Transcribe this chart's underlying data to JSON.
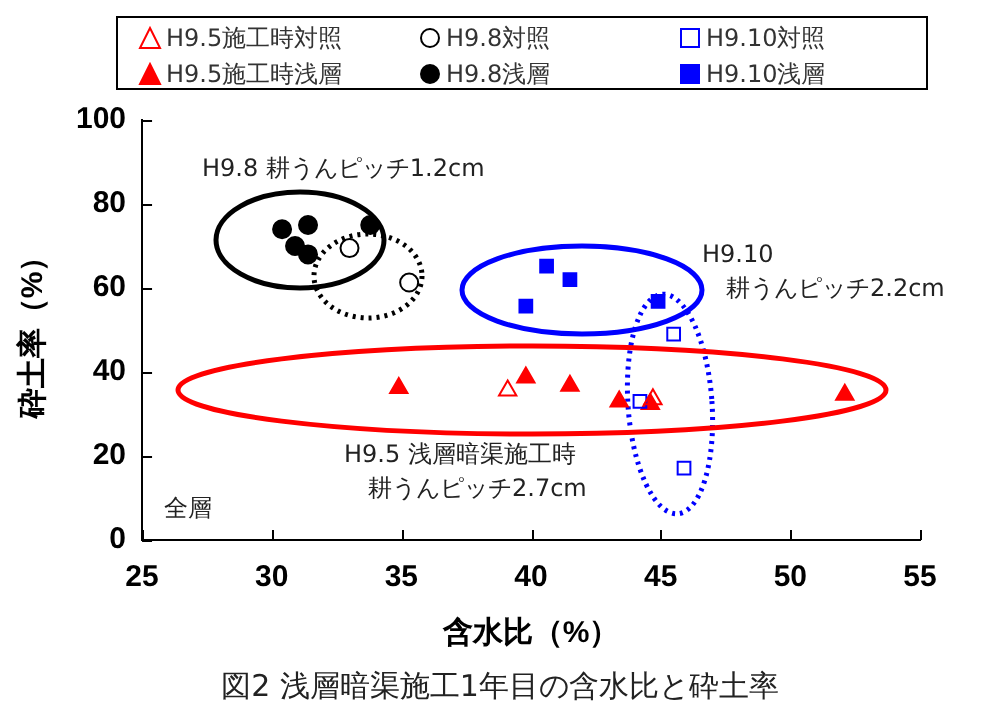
{
  "chart_data": {
    "type": "scatter",
    "title": "図2  浅層暗渠施工1年目の含水比と砕土率",
    "xlabel": "含水比（%）",
    "ylabel": "砕土率（%）",
    "xlim": [
      25,
      55
    ],
    "xticks": [
      25,
      30,
      35,
      40,
      45,
      50,
      55
    ],
    "ylim": [
      0,
      100
    ],
    "yticks": [
      0,
      20,
      40,
      60,
      80,
      100
    ],
    "grid": false,
    "legend": "top",
    "series": [
      {
        "name": "H9.5施工時対照",
        "color": "#ff0000",
        "marker": "triangle",
        "x": [
          39.1,
          44.7
        ],
        "values": [
          35.6,
          33.5
        ]
      },
      {
        "name": "H9.8対照",
        "color": "#000000",
        "marker": "circle",
        "x": [
          33.0,
          35.3
        ],
        "values": [
          69.5,
          61.3
        ]
      },
      {
        "name": "H9.10対照",
        "color": "#0000ff",
        "marker": "square",
        "x": [
          44.2,
          45.5,
          45.9
        ],
        "values": [
          33,
          49,
          17.1
        ]
      },
      {
        "name": "H9.5施工時浅層",
        "color": "#ff0000",
        "marker": "triangle",
        "x": [
          34.9,
          39.8,
          41.5,
          43.4,
          44.6,
          52.1
        ],
        "values": [
          36.2,
          38.7,
          36.7,
          33,
          32.4,
          34.6
        ]
      },
      {
        "name": "H9.8浅層",
        "color": "#000000",
        "marker": "circle",
        "x": [
          30.4,
          31.4,
          30.9,
          31.4,
          33.8
        ],
        "values": [
          74,
          75,
          70,
          68,
          75
        ]
      },
      {
        "name": "H9.10浅層",
        "color": "#0000ff",
        "marker": "square",
        "x": [
          40.6,
          41.5,
          39.8,
          44.9
        ],
        "values": [
          65.2,
          62,
          55.7,
          56.8
        ]
      }
    ],
    "annotations": [
      "H9.8  耕うんピッチ1.2cm",
      "H9.10耕うんピッチ2.2cm",
      "H9.5  浅層暗渠施工時耕うんピッチ2.7cm",
      "全層"
    ]
  }
}
